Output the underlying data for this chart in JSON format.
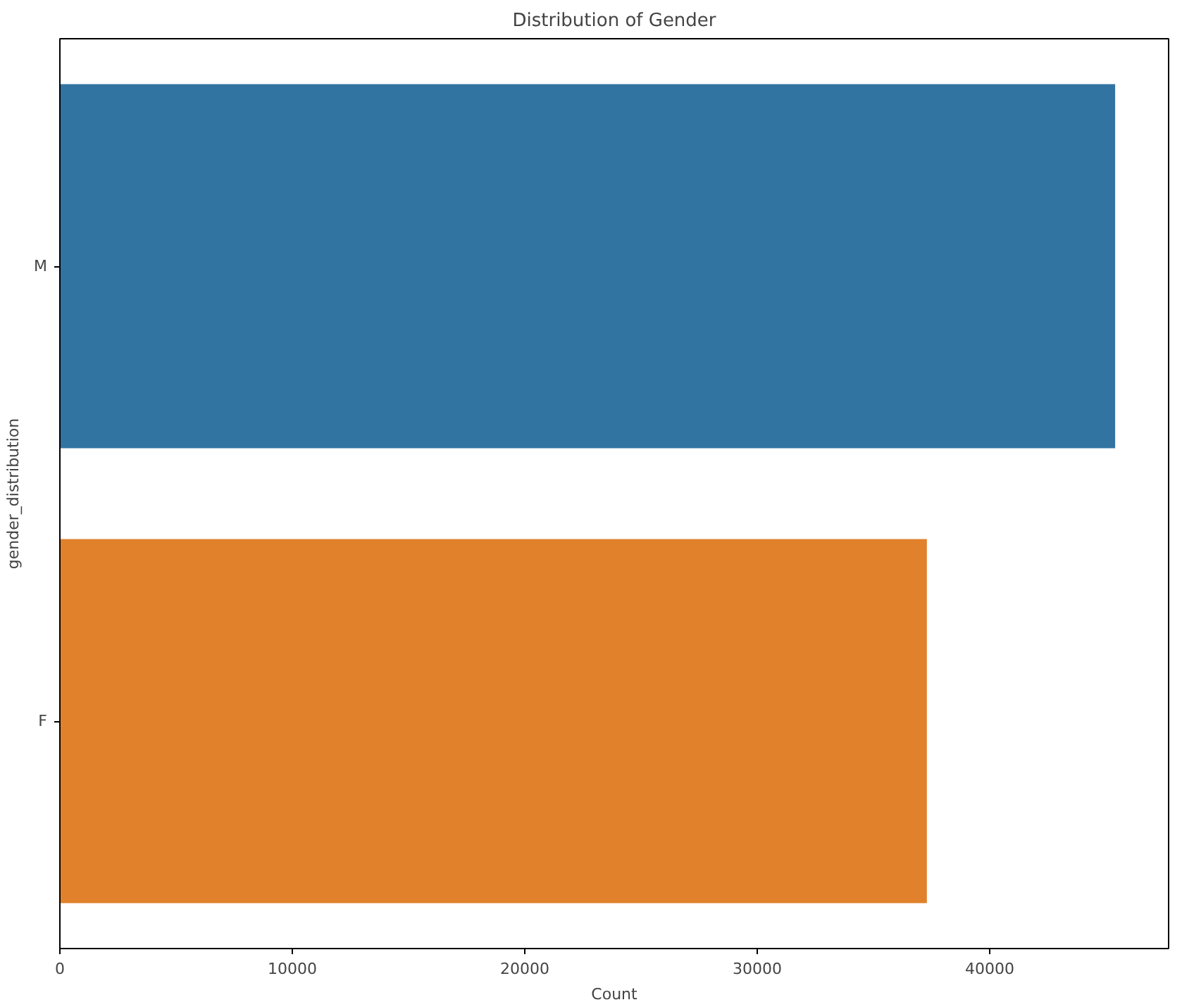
{
  "chart_data": {
    "type": "bar",
    "orientation": "horizontal",
    "title": "Distribution of Gender",
    "xlabel": "Count",
    "ylabel": "gender_distribution",
    "categories": [
      "M",
      "F"
    ],
    "values": [
      45400,
      37300
    ],
    "colors": [
      "#3274a1",
      "#e1812c"
    ],
    "xlim": [
      0,
      47700
    ],
    "xticks": [
      0,
      10000,
      20000,
      30000,
      40000
    ],
    "grid": false
  }
}
